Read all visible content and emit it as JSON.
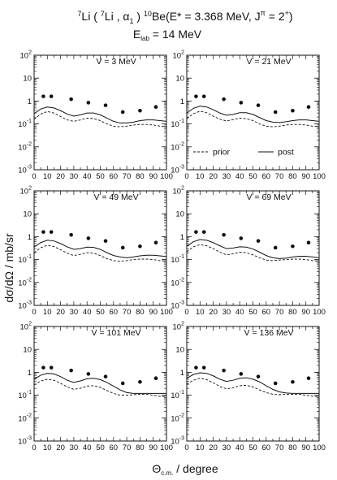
{
  "figure": {
    "title_line1_parts": {
      "pre_a": "7",
      "p1": "Li ( ",
      "pre_b": "7",
      "p2": "Li , α",
      "sub_a": "1",
      "p3": " ) ",
      "pre_c": "10",
      "p4": "Be(E* = 3.368 MeV, J",
      "sup_pi": "π",
      "p5": " = 2",
      "sup_plus": "+",
      "p6": ")"
    },
    "title_line2_parts": {
      "p1": "E",
      "sub": "lab",
      "p2": " = 14 MeV"
    },
    "ylabel": "dσ/dΩ  /  mb/sr",
    "xlabel_parts": {
      "sym": "Θ",
      "sub": "c.m.",
      "rest": " / degree"
    }
  },
  "chart_data": {
    "type": "line",
    "x_ticks": [
      "0",
      "10",
      "20",
      "30",
      "40",
      "50",
      "60",
      "70",
      "80",
      "90",
      "100"
    ],
    "y_tick_labels": [
      {
        "base": "10",
        "exp": "2"
      },
      {
        "base": "10",
        "exp": ""
      },
      {
        "base": "1",
        "exp": ""
      },
      {
        "base": "10",
        "exp": "-1"
      },
      {
        "base": "10",
        "exp": "-2"
      },
      {
        "base": "10",
        "exp": "-3"
      }
    ],
    "xlim": [
      0,
      100
    ],
    "ylim": [
      0.001,
      100
    ],
    "yscale": "log",
    "legend": {
      "prior": "prior",
      "post": "post"
    },
    "panels": [
      {
        "label": "V = 3 MeV",
        "data_points": {
          "x": [
            7,
            13,
            28,
            41,
            54,
            67,
            80,
            92
          ],
          "y": [
            1.6,
            1.6,
            1.2,
            0.85,
            0.65,
            0.33,
            0.38,
            0.55
          ]
        },
        "post": {
          "x": [
            0,
            5,
            10,
            15,
            20,
            25,
            30,
            35,
            40,
            45,
            50,
            55,
            60,
            65,
            70,
            75,
            80,
            85,
            90,
            95,
            100
          ],
          "y": [
            0.28,
            0.45,
            0.55,
            0.5,
            0.38,
            0.27,
            0.22,
            0.25,
            0.3,
            0.3,
            0.25,
            0.18,
            0.13,
            0.11,
            0.11,
            0.12,
            0.14,
            0.15,
            0.15,
            0.14,
            0.13
          ]
        },
        "prior": {
          "x": [
            0,
            5,
            10,
            15,
            20,
            25,
            30,
            35,
            40,
            45,
            50,
            55,
            60,
            65,
            70,
            75,
            80,
            85,
            90,
            95,
            100
          ],
          "y": [
            0.16,
            0.27,
            0.35,
            0.3,
            0.21,
            0.15,
            0.13,
            0.15,
            0.18,
            0.17,
            0.14,
            0.1,
            0.08,
            0.075,
            0.08,
            0.09,
            0.095,
            0.095,
            0.09,
            0.08,
            0.075
          ]
        }
      },
      {
        "label": "V = 21 MeV",
        "data_points": {
          "x": [
            7,
            13,
            28,
            41,
            54,
            67,
            80,
            92
          ],
          "y": [
            1.6,
            1.6,
            1.2,
            0.85,
            0.65,
            0.33,
            0.38,
            0.55
          ]
        },
        "post": {
          "x": [
            0,
            5,
            10,
            15,
            20,
            25,
            30,
            35,
            40,
            45,
            50,
            55,
            60,
            65,
            70,
            75,
            80,
            85,
            90,
            95,
            100
          ],
          "y": [
            0.3,
            0.48,
            0.6,
            0.55,
            0.42,
            0.3,
            0.24,
            0.26,
            0.31,
            0.31,
            0.26,
            0.19,
            0.14,
            0.12,
            0.115,
            0.125,
            0.14,
            0.15,
            0.15,
            0.14,
            0.13
          ]
        },
        "prior": {
          "x": [
            0,
            5,
            10,
            15,
            20,
            25,
            30,
            35,
            40,
            45,
            50,
            55,
            60,
            65,
            70,
            75,
            80,
            85,
            90,
            95,
            100
          ],
          "y": [
            0.17,
            0.28,
            0.36,
            0.31,
            0.22,
            0.16,
            0.135,
            0.155,
            0.18,
            0.17,
            0.14,
            0.1,
            0.08,
            0.075,
            0.08,
            0.09,
            0.095,
            0.095,
            0.09,
            0.08,
            0.075
          ]
        }
      },
      {
        "label": "V = 49 MeV",
        "data_points": {
          "x": [
            7,
            13,
            28,
            41,
            54,
            67,
            80,
            92
          ],
          "y": [
            1.6,
            1.6,
            1.2,
            0.85,
            0.65,
            0.33,
            0.38,
            0.55
          ]
        },
        "post": {
          "x": [
            0,
            5,
            10,
            15,
            20,
            25,
            30,
            35,
            40,
            45,
            50,
            55,
            60,
            65,
            70,
            75,
            80,
            85,
            90,
            95,
            100
          ],
          "y": [
            0.35,
            0.55,
            0.7,
            0.65,
            0.5,
            0.36,
            0.28,
            0.3,
            0.35,
            0.34,
            0.28,
            0.2,
            0.15,
            0.13,
            0.12,
            0.13,
            0.145,
            0.155,
            0.155,
            0.145,
            0.135
          ]
        },
        "prior": {
          "x": [
            0,
            5,
            10,
            15,
            20,
            25,
            30,
            35,
            40,
            45,
            50,
            55,
            60,
            65,
            70,
            75,
            80,
            85,
            90,
            95,
            100
          ],
          "y": [
            0.2,
            0.33,
            0.42,
            0.37,
            0.27,
            0.19,
            0.15,
            0.17,
            0.2,
            0.19,
            0.15,
            0.11,
            0.09,
            0.085,
            0.09,
            0.1,
            0.105,
            0.105,
            0.1,
            0.09,
            0.085
          ]
        }
      },
      {
        "label": "V = 69 MeV",
        "data_points": {
          "x": [
            7,
            13,
            28,
            41,
            54,
            67,
            80,
            92
          ],
          "y": [
            1.6,
            1.6,
            1.2,
            0.85,
            0.65,
            0.33,
            0.38,
            0.55
          ]
        },
        "post": {
          "x": [
            0,
            5,
            10,
            15,
            20,
            25,
            30,
            35,
            40,
            45,
            50,
            55,
            60,
            65,
            70,
            75,
            80,
            85,
            90,
            95,
            100
          ],
          "y": [
            0.38,
            0.6,
            0.75,
            0.7,
            0.55,
            0.4,
            0.3,
            0.32,
            0.36,
            0.35,
            0.29,
            0.21,
            0.15,
            0.12,
            0.11,
            0.115,
            0.13,
            0.14,
            0.14,
            0.13,
            0.12
          ]
        },
        "prior": {
          "x": [
            0,
            5,
            10,
            15,
            20,
            25,
            30,
            35,
            40,
            45,
            50,
            55,
            60,
            65,
            70,
            75,
            80,
            85,
            90,
            95,
            100
          ],
          "y": [
            0.22,
            0.36,
            0.45,
            0.4,
            0.3,
            0.21,
            0.16,
            0.18,
            0.21,
            0.2,
            0.16,
            0.12,
            0.095,
            0.09,
            0.095,
            0.1,
            0.105,
            0.105,
            0.1,
            0.09,
            0.085
          ]
        }
      },
      {
        "label": "V = 101 MeV",
        "data_points": {
          "x": [
            7,
            13,
            28,
            41,
            54,
            67,
            80,
            92
          ],
          "y": [
            1.6,
            1.6,
            1.2,
            0.85,
            0.65,
            0.33,
            0.38,
            0.55
          ]
        },
        "post": {
          "x": [
            0,
            5,
            10,
            15,
            20,
            25,
            30,
            35,
            40,
            45,
            50,
            55,
            60,
            65,
            70,
            75,
            80,
            85,
            90,
            95,
            100
          ],
          "y": [
            0.5,
            0.75,
            0.9,
            0.85,
            0.65,
            0.45,
            0.36,
            0.42,
            0.52,
            0.55,
            0.48,
            0.36,
            0.25,
            0.17,
            0.13,
            0.12,
            0.12,
            0.12,
            0.12,
            0.12,
            0.12
          ]
        },
        "prior": {
          "x": [
            0,
            5,
            10,
            15,
            20,
            25,
            30,
            35,
            40,
            45,
            50,
            55,
            60,
            65,
            70,
            75,
            80,
            85,
            90,
            95,
            100
          ],
          "y": [
            0.28,
            0.42,
            0.5,
            0.45,
            0.33,
            0.23,
            0.18,
            0.2,
            0.25,
            0.26,
            0.22,
            0.16,
            0.12,
            0.1,
            0.1,
            0.105,
            0.11,
            0.11,
            0.1,
            0.09,
            0.085
          ]
        }
      },
      {
        "label": "V = 136 MeV",
        "data_points": {
          "x": [
            7,
            13,
            28,
            41,
            54,
            67,
            80,
            92
          ],
          "y": [
            1.6,
            1.6,
            1.2,
            0.85,
            0.65,
            0.33,
            0.38,
            0.55
          ]
        },
        "post": {
          "x": [
            0,
            5,
            10,
            15,
            20,
            25,
            30,
            35,
            40,
            45,
            50,
            55,
            60,
            65,
            70,
            75,
            80,
            85,
            90,
            95,
            100
          ],
          "y": [
            0.55,
            0.8,
            0.95,
            0.9,
            0.7,
            0.5,
            0.4,
            0.45,
            0.55,
            0.58,
            0.5,
            0.38,
            0.26,
            0.18,
            0.14,
            0.125,
            0.12,
            0.12,
            0.12,
            0.12,
            0.12
          ]
        },
        "prior": {
          "x": [
            0,
            5,
            10,
            15,
            20,
            25,
            30,
            35,
            40,
            45,
            50,
            55,
            60,
            65,
            70,
            75,
            80,
            85,
            90,
            95,
            100
          ],
          "y": [
            0.3,
            0.45,
            0.55,
            0.48,
            0.35,
            0.24,
            0.19,
            0.21,
            0.26,
            0.27,
            0.23,
            0.17,
            0.13,
            0.11,
            0.105,
            0.11,
            0.11,
            0.11,
            0.1,
            0.09,
            0.085
          ]
        }
      }
    ]
  }
}
